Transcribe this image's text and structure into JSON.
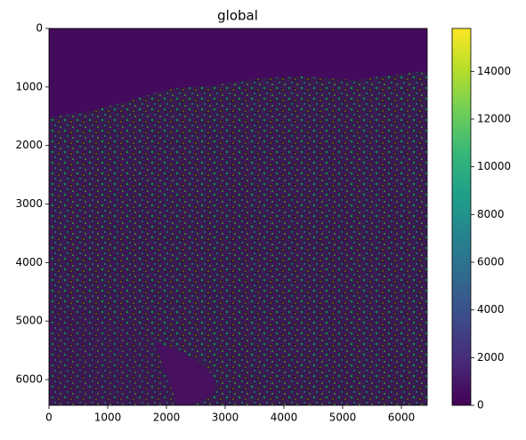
{
  "chart_data": {
    "type": "image",
    "title": "global",
    "xlim": [
      0,
      6440
    ],
    "xticks": [
      0,
      1000,
      2000,
      3000,
      4000,
      5000,
      6000
    ],
    "ylim": [
      6440,
      0
    ],
    "yticks": [
      0,
      1000,
      2000,
      3000,
      4000,
      5000,
      6000
    ],
    "colormap": "viridis",
    "colorbar": {
      "lim": [
        0,
        15800
      ],
      "ticks": [
        0,
        2000,
        4000,
        6000,
        8000,
        10000,
        12000,
        14000
      ]
    }
  }
}
